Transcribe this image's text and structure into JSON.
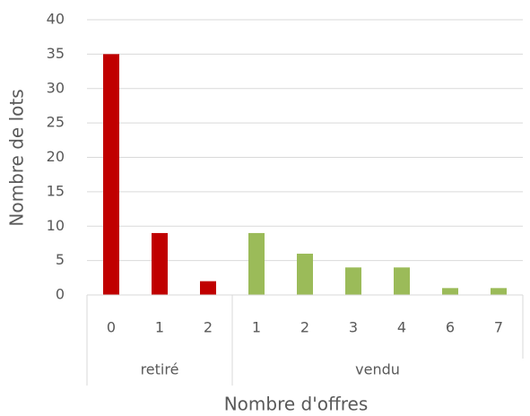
{
  "chart_data": {
    "type": "bar",
    "groups": [
      {
        "name": "retiré",
        "color": "#c00000",
        "categories": [
          "0",
          "1",
          "2"
        ],
        "values": [
          35,
          9,
          2
        ]
      },
      {
        "name": "vendu",
        "color": "#9bbb59",
        "categories": [
          "1",
          "2",
          "3",
          "4",
          "6",
          "7"
        ],
        "values": [
          9,
          6,
          4,
          4,
          1,
          1
        ]
      }
    ],
    "ylabel": "Nombre de lots",
    "xlabel": "Nombre d'offres",
    "ylim": [
      0,
      40
    ],
    "yticks": [
      0,
      5,
      10,
      15,
      20,
      25,
      30,
      35,
      40
    ],
    "grid": true
  }
}
